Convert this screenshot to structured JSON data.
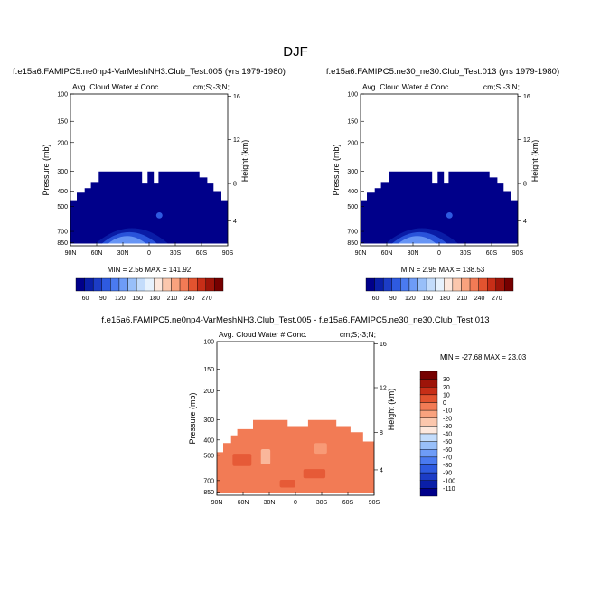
{
  "main_title": "DJF",
  "colors": {
    "absolute_scale": [
      "#00008a",
      "#0a1fa8",
      "#1c3cc6",
      "#2e5ae0",
      "#4a7af0",
      "#6e9cf7",
      "#98bff9",
      "#c3dcfb",
      "#e7f2fd",
      "#fde8dd",
      "#fbc7ad",
      "#f9a27e",
      "#f27b55",
      "#e2532f",
      "#c72e17",
      "#9e1409",
      "#760000"
    ],
    "diff_scale": [
      "#00008a",
      "#0a1fa8",
      "#1c3cc6",
      "#2e5ae0",
      "#4a7af0",
      "#6e9cf7",
      "#98bff9",
      "#c3dcfb",
      "#e7f2fd",
      "#fde8dd",
      "#fbc7ad",
      "#f9a27e",
      "#f27b55",
      "#e2532f",
      "#c72e17",
      "#9e1409",
      "#760000"
    ]
  },
  "chart_data": [
    {
      "type": "heatmap",
      "title": "f.e15a6.FAMIPC5.ne0np4-VarMeshNH3.Club_Test.005 (yrs 1979-1980)",
      "subtitle_left": "Avg. Cloud Water # Conc.",
      "subtitle_right": "cm;S;-3;N;",
      "ylabel": "Pressure (mb)",
      "ylabel_right": "Height (km)",
      "x_ticks": [
        "90N",
        "60N",
        "30N",
        "0",
        "30S",
        "60S",
        "90S"
      ],
      "y_ticks": [
        "100",
        "150",
        "200",
        "300",
        "400",
        "500",
        "700",
        "850"
      ],
      "y_right_ticks": [
        "16",
        "12",
        "8",
        "4"
      ],
      "stats": "MIN =   2.56   MAX = 141.92",
      "colorbar_labels": [
        "60",
        "90",
        "120",
        "150",
        "180",
        "210",
        "240",
        "270"
      ]
    },
    {
      "type": "heatmap",
      "title": "f.e15a6.FAMIPC5.ne30_ne30.Club_Test.013 (yrs 1979-1980)",
      "subtitle_left": "Avg. Cloud Water # Conc.",
      "subtitle_right": "cm;S;-3;N;",
      "ylabel": "Pressure (mb)",
      "ylabel_right": "Height (km)",
      "x_ticks": [
        "90N",
        "60N",
        "30N",
        "0",
        "30S",
        "60S",
        "90S"
      ],
      "y_ticks": [
        "100",
        "150",
        "200",
        "300",
        "400",
        "500",
        "700",
        "850"
      ],
      "y_right_ticks": [
        "16",
        "12",
        "8",
        "4"
      ],
      "stats": "MIN =   2.95   MAX = 138.53",
      "colorbar_labels": [
        "60",
        "90",
        "120",
        "150",
        "180",
        "210",
        "240",
        "270"
      ]
    },
    {
      "type": "heatmap",
      "title": "f.e15a6.FAMIPC5.ne0np4-VarMeshNH3.Club_Test.005 - f.e15a6.FAMIPC5.ne30_ne30.Club_Test.013",
      "subtitle_left": "Avg. Cloud Water # Conc.",
      "subtitle_right": "cm;S;-3;N;",
      "ylabel": "Pressure (mb)",
      "ylabel_right": "Height (km)",
      "x_ticks": [
        "90N",
        "60N",
        "30N",
        "0",
        "30S",
        "60S",
        "90S"
      ],
      "y_ticks": [
        "100",
        "150",
        "200",
        "300",
        "400",
        "500",
        "700",
        "850"
      ],
      "y_right_ticks": [
        "16",
        "12",
        "8",
        "4"
      ],
      "stats": "MIN = -27.68   MAX = 23.03",
      "colorbar_labels": [
        "30",
        "20",
        "10",
        "0",
        "-10",
        "-20",
        "-30",
        "-40",
        "-50",
        "-60",
        "-70",
        "-80",
        "-90",
        "-100",
        "-110"
      ]
    }
  ]
}
